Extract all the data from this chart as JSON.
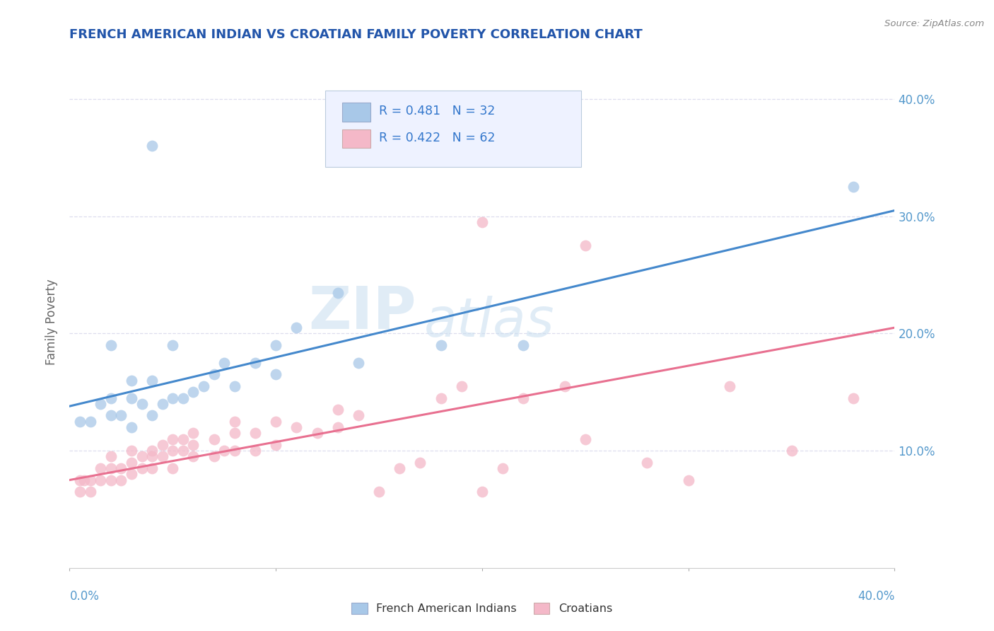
{
  "title": "FRENCH AMERICAN INDIAN VS CROATIAN FAMILY POVERTY CORRELATION CHART",
  "source": "Source: ZipAtlas.com",
  "ylabel": "Family Poverty",
  "xlim": [
    0.0,
    0.4
  ],
  "ylim": [
    0.0,
    0.42
  ],
  "yticks": [
    0.1,
    0.2,
    0.3,
    0.4
  ],
  "ytick_labels": [
    "10.0%",
    "20.0%",
    "30.0%",
    "40.0%"
  ],
  "xticks": [
    0.0,
    0.1,
    0.2,
    0.3,
    0.4
  ],
  "xtick_labels_show": [
    "0.0%",
    "40.0%"
  ],
  "legend_r_blue": "R = 0.481",
  "legend_n_blue": "N = 32",
  "legend_r_pink": "R = 0.422",
  "legend_n_pink": "N = 62",
  "blue_color": "#a8c8e8",
  "pink_color": "#f4b8c8",
  "blue_line_color": "#4488cc",
  "pink_line_color": "#e87090",
  "watermark_zip": "ZIP",
  "watermark_atlas": "atlas",
  "blue_line_x": [
    0.0,
    0.4
  ],
  "blue_line_y": [
    0.138,
    0.305
  ],
  "pink_line_x": [
    0.0,
    0.4
  ],
  "pink_line_y": [
    0.075,
    0.205
  ],
  "title_color": "#2255aa",
  "axis_label_color": "#666666",
  "tick_label_color": "#5599cc",
  "grid_color": "#ddddee",
  "legend_text_color": "#3377cc",
  "legend_facecolor": "#eef2ff",
  "legend_edgecolor": "#bbccdd",
  "bottom_legend_blue": "French American Indians",
  "bottom_legend_pink": "Croatians",
  "blue_scatter_x": [
    0.005,
    0.01,
    0.015,
    0.02,
    0.02,
    0.02,
    0.025,
    0.03,
    0.03,
    0.03,
    0.035,
    0.04,
    0.04,
    0.045,
    0.05,
    0.05,
    0.055,
    0.06,
    0.065,
    0.07,
    0.075,
    0.08,
    0.09,
    0.1,
    0.1,
    0.11,
    0.13,
    0.14,
    0.18,
    0.22,
    0.38,
    0.04
  ],
  "blue_scatter_y": [
    0.125,
    0.125,
    0.14,
    0.13,
    0.145,
    0.19,
    0.13,
    0.12,
    0.145,
    0.16,
    0.14,
    0.13,
    0.16,
    0.14,
    0.145,
    0.19,
    0.145,
    0.15,
    0.155,
    0.165,
    0.175,
    0.155,
    0.175,
    0.165,
    0.19,
    0.205,
    0.235,
    0.175,
    0.19,
    0.19,
    0.325,
    0.36
  ],
  "pink_scatter_x": [
    0.005,
    0.005,
    0.007,
    0.01,
    0.01,
    0.015,
    0.015,
    0.02,
    0.02,
    0.02,
    0.025,
    0.025,
    0.03,
    0.03,
    0.03,
    0.035,
    0.035,
    0.04,
    0.04,
    0.04,
    0.045,
    0.045,
    0.05,
    0.05,
    0.05,
    0.055,
    0.055,
    0.06,
    0.06,
    0.06,
    0.07,
    0.07,
    0.075,
    0.08,
    0.08,
    0.08,
    0.09,
    0.09,
    0.1,
    0.1,
    0.11,
    0.12,
    0.13,
    0.13,
    0.14,
    0.15,
    0.16,
    0.17,
    0.18,
    0.19,
    0.2,
    0.21,
    0.22,
    0.24,
    0.25,
    0.28,
    0.3,
    0.32,
    0.35,
    0.38,
    0.2,
    0.25
  ],
  "pink_scatter_y": [
    0.065,
    0.075,
    0.075,
    0.065,
    0.075,
    0.075,
    0.085,
    0.075,
    0.085,
    0.095,
    0.075,
    0.085,
    0.08,
    0.09,
    0.1,
    0.085,
    0.095,
    0.085,
    0.095,
    0.1,
    0.095,
    0.105,
    0.085,
    0.1,
    0.11,
    0.1,
    0.11,
    0.095,
    0.105,
    0.115,
    0.095,
    0.11,
    0.1,
    0.1,
    0.115,
    0.125,
    0.1,
    0.115,
    0.105,
    0.125,
    0.12,
    0.115,
    0.12,
    0.135,
    0.13,
    0.065,
    0.085,
    0.09,
    0.145,
    0.155,
    0.065,
    0.085,
    0.145,
    0.155,
    0.275,
    0.09,
    0.075,
    0.155,
    0.1,
    0.145,
    0.295,
    0.11
  ]
}
